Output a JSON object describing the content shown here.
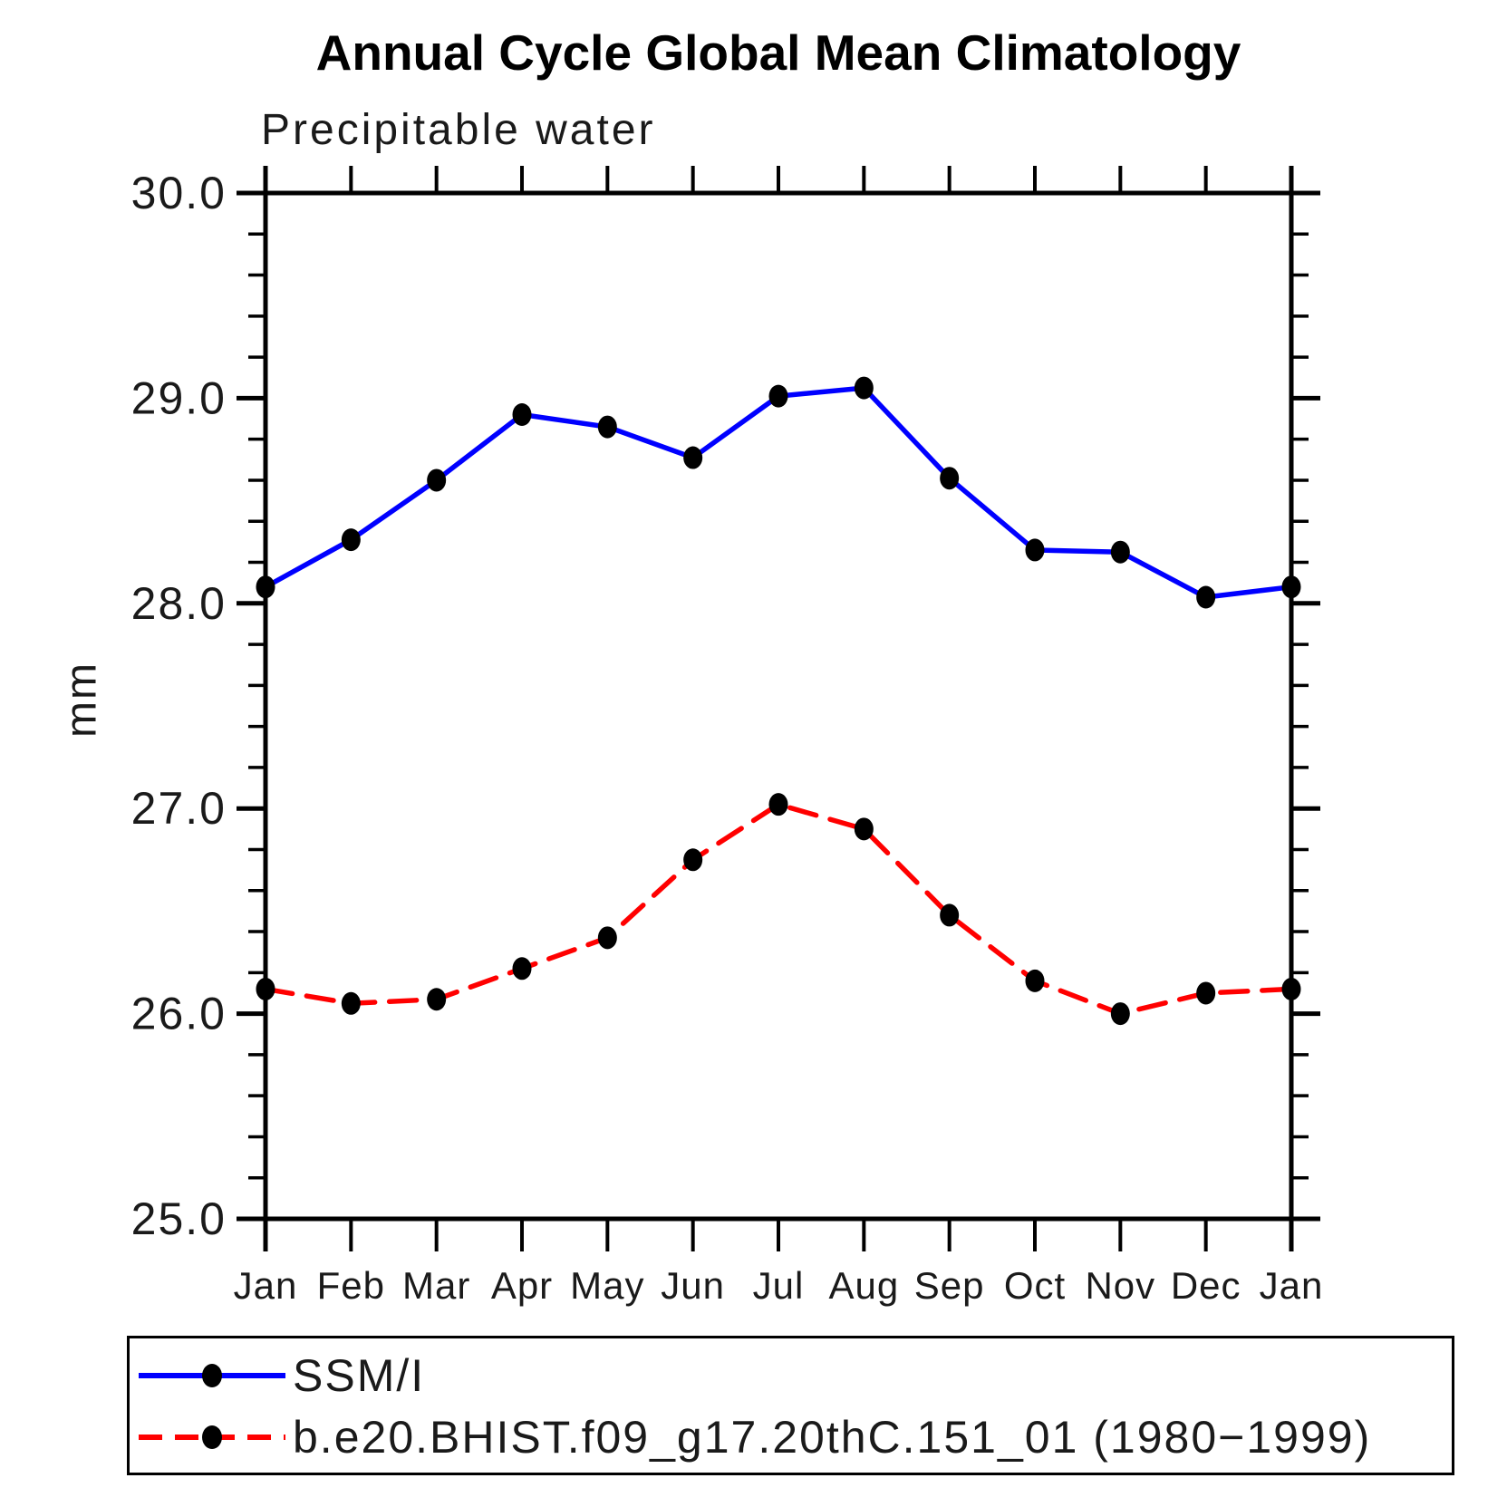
{
  "page": {
    "background": "#ffffff"
  },
  "chart_data": {
    "type": "line",
    "title": "Annual Cycle Global Mean Climatology",
    "subtitle": "Precipitable water",
    "xlabel": "",
    "ylabel": "mm",
    "categories": [
      "Jan",
      "Feb",
      "Mar",
      "Apr",
      "May",
      "Jun",
      "Jul",
      "Aug",
      "Sep",
      "Oct",
      "Nov",
      "Dec",
      "Jan"
    ],
    "ylim": [
      25.0,
      30.0
    ],
    "y_major_ticks": [
      25.0,
      26.0,
      27.0,
      28.0,
      29.0,
      30.0
    ],
    "y_tick_labels": [
      "25.0",
      "26.0",
      "27.0",
      "28.0",
      "29.0",
      "30.0"
    ],
    "y_minor_step": 0.2,
    "grid": false,
    "legend_position": "bottom-box",
    "marker": {
      "shape": "circle",
      "color": "#000000"
    },
    "series": [
      {
        "name": "SSM/I",
        "color": "#0000ff",
        "style": "solid",
        "values": [
          28.08,
          28.31,
          28.6,
          28.92,
          28.86,
          28.71,
          29.01,
          29.05,
          28.61,
          28.26,
          28.25,
          28.03,
          28.08
        ]
      },
      {
        "name": "b.e20.BHIST.f09_g17.20thC.151_01 (1980−1999)",
        "color": "#ff0000",
        "style": "dashed",
        "values": [
          26.12,
          26.05,
          26.07,
          26.22,
          26.37,
          26.75,
          27.02,
          26.9,
          26.48,
          26.16,
          26.0,
          26.1,
          26.12
        ]
      }
    ]
  }
}
